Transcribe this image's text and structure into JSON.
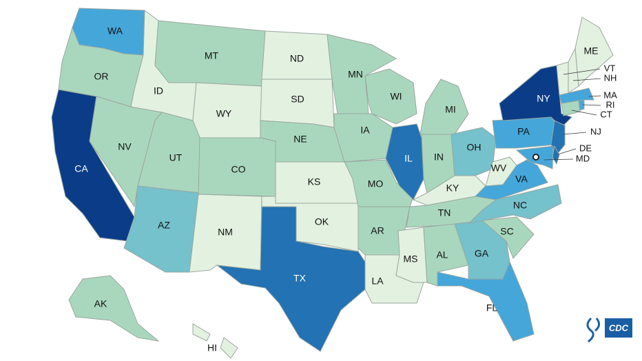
{
  "states": [
    {
      "label": "WA",
      "color": "#45a6da"
    },
    {
      "label": "OR",
      "color": "#a9d7bd"
    },
    {
      "label": "CA",
      "color": "#0b3c87"
    },
    {
      "label": "NV",
      "color": "#a9d7bd"
    },
    {
      "label": "ID",
      "color": "#e3f1e0"
    },
    {
      "label": "MT",
      "color": "#a9d7bd"
    },
    {
      "label": "WY",
      "color": "#e3f1e0"
    },
    {
      "label": "UT",
      "color": "#a9d7bd"
    },
    {
      "label": "AZ",
      "color": "#75c1cc"
    },
    {
      "label": "CO",
      "color": "#a9d7bd"
    },
    {
      "label": "NM",
      "color": "#e3f1e0"
    },
    {
      "label": "ND",
      "color": "#e3f1e0"
    },
    {
      "label": "SD",
      "color": "#e3f1e0"
    },
    {
      "label": "NE",
      "color": "#a9d7bd"
    },
    {
      "label": "KS",
      "color": "#e3f1e0"
    },
    {
      "label": "OK",
      "color": "#e3f1e0"
    },
    {
      "label": "TX",
      "color": "#2272b4"
    },
    {
      "label": "MN",
      "color": "#a9d7bd"
    },
    {
      "label": "IA",
      "color": "#a9d7bd"
    },
    {
      "label": "MO",
      "color": "#a9d7bd"
    },
    {
      "label": "AR",
      "color": "#a9d7bd"
    },
    {
      "label": "LA",
      "color": "#e3f1e0"
    },
    {
      "label": "WI",
      "color": "#a9d7bd"
    },
    {
      "label": "IL",
      "color": "#2272b4"
    },
    {
      "label": "MI",
      "color": "#a9d7bd"
    },
    {
      "label": "IN",
      "color": "#a9d7bd"
    },
    {
      "label": "OH",
      "color": "#75c1cc"
    },
    {
      "label": "KY",
      "color": "#e3f1e0"
    },
    {
      "label": "TN",
      "color": "#a9d7bd"
    },
    {
      "label": "MS",
      "color": "#e3f1e0"
    },
    {
      "label": "AL",
      "color": "#a9d7bd"
    },
    {
      "label": "GA",
      "color": "#75c1cc"
    },
    {
      "label": "FL",
      "color": "#45a6da"
    },
    {
      "label": "SC",
      "color": "#a9d7bd"
    },
    {
      "label": "NC",
      "color": "#75c1cc"
    },
    {
      "label": "VA",
      "color": "#45a6da"
    },
    {
      "label": "WV",
      "color": "#e3f1e0"
    },
    {
      "label": "PA",
      "color": "#45a6da"
    },
    {
      "label": "NY",
      "color": "#0b3c87"
    },
    {
      "label": "NJ",
      "color": "#2272b4"
    },
    {
      "label": "DE",
      "color": "#2272b4"
    },
    {
      "label": "MD",
      "color": "#45a6da"
    },
    {
      "label": "CT",
      "color": "#a9d7bd"
    },
    {
      "label": "RI",
      "color": "#45a6da"
    },
    {
      "label": "MA",
      "color": "#45a6da"
    },
    {
      "label": "NH",
      "color": "#e3f1e0"
    },
    {
      "label": "VT",
      "color": "#e3f1e0"
    },
    {
      "label": "ME",
      "color": "#e3f1e0"
    },
    {
      "label": "AK",
      "color": "#a9d7bd"
    },
    {
      "label": "HI",
      "color": "#e3f1e0"
    }
  ],
  "logo": {
    "text": "CDC"
  }
}
